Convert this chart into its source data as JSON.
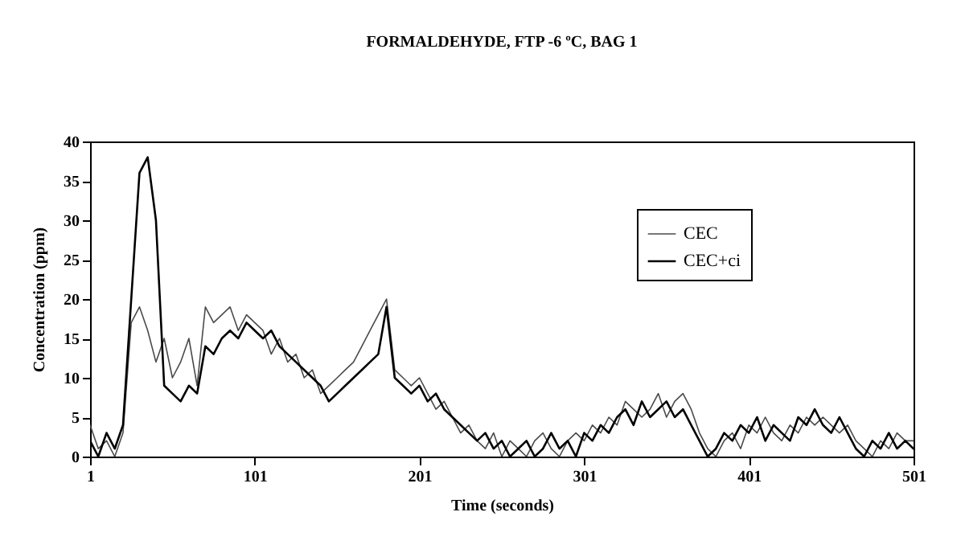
{
  "chart_data": {
    "type": "line",
    "title": "FORMALDEHYDE, FTP -6 ºC, BAG 1",
    "xlabel": "Time (seconds)",
    "ylabel": "Concentration (ppm)",
    "x": [
      1,
      6,
      11,
      16,
      21,
      26,
      31,
      36,
      41,
      46,
      51,
      56,
      61,
      66,
      71,
      76,
      81,
      86,
      91,
      96,
      101,
      106,
      111,
      116,
      121,
      126,
      131,
      136,
      141,
      146,
      151,
      156,
      161,
      166,
      171,
      176,
      181,
      186,
      191,
      196,
      201,
      206,
      211,
      216,
      221,
      226,
      231,
      236,
      241,
      246,
      251,
      256,
      261,
      266,
      271,
      276,
      281,
      286,
      291,
      296,
      301,
      306,
      311,
      316,
      321,
      326,
      331,
      336,
      341,
      346,
      351,
      356,
      361,
      366,
      371,
      376,
      381,
      386,
      391,
      396,
      401,
      406,
      411,
      416,
      421,
      426,
      431,
      436,
      441,
      446,
      451,
      456,
      461,
      466,
      471,
      476,
      481,
      486,
      491,
      496,
      501
    ],
    "series": [
      {
        "name": "CEC",
        "color": "#4a4a4a",
        "values": [
          4,
          1,
          2,
          0,
          3,
          17,
          19,
          16,
          12,
          15,
          10,
          12,
          15,
          9,
          19,
          17,
          18,
          19,
          16,
          18,
          17,
          16,
          13,
          15,
          12,
          13,
          10,
          11,
          8,
          9,
          10,
          11,
          12,
          14,
          16,
          18,
          20,
          11,
          10,
          9,
          10,
          8,
          6,
          7,
          5,
          3,
          4,
          2,
          1,
          3,
          0,
          2,
          1,
          0,
          2,
          3,
          1,
          0,
          2,
          3,
          2,
          4,
          3,
          5,
          4,
          7,
          6,
          5,
          6,
          8,
          5,
          7,
          8,
          6,
          3,
          1,
          0,
          2,
          3,
          1,
          4,
          3,
          5,
          3,
          2,
          4,
          3,
          5,
          4,
          5,
          4,
          3,
          4,
          2,
          1,
          0,
          2,
          1,
          3,
          2,
          2
        ]
      },
      {
        "name": "CEC+ci",
        "color": "#000000",
        "values": [
          2,
          0,
          3,
          1,
          4,
          20,
          36,
          38,
          30,
          9,
          8,
          7,
          9,
          8,
          14,
          13,
          15,
          16,
          15,
          17,
          16,
          15,
          16,
          14,
          13,
          12,
          11,
          10,
          9,
          7,
          8,
          9,
          10,
          11,
          12,
          13,
          19,
          10,
          9,
          8,
          9,
          7,
          8,
          6,
          5,
          4,
          3,
          2,
          3,
          1,
          2,
          0,
          1,
          2,
          0,
          1,
          3,
          1,
          2,
          0,
          3,
          2,
          4,
          3,
          5,
          6,
          4,
          7,
          5,
          6,
          7,
          5,
          6,
          4,
          2,
          0,
          1,
          3,
          2,
          4,
          3,
          5,
          2,
          4,
          3,
          2,
          5,
          4,
          6,
          4,
          3,
          5,
          3,
          1,
          0,
          2,
          1,
          3,
          1,
          2,
          1
        ]
      }
    ],
    "xlim": [
      1,
      501
    ],
    "xticks": [
      1,
      101,
      201,
      301,
      401,
      501
    ],
    "ylim": [
      0,
      40
    ],
    "yticks": [
      0,
      5,
      10,
      15,
      20,
      25,
      30,
      35,
      40
    ],
    "legend": "top right",
    "line_style": "solid",
    "grid": false
  }
}
